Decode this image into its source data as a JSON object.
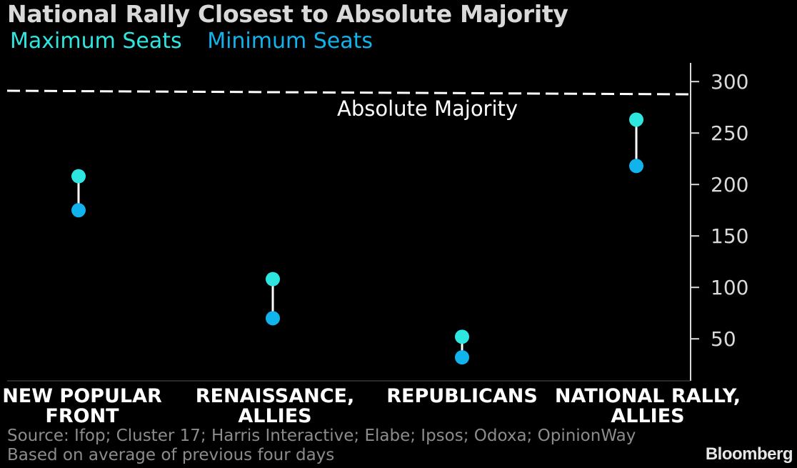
{
  "title": "National Rally Closest to Absolute Majority",
  "legend": [
    {
      "label": "Maximum Seats",
      "color": "#2ee6e0"
    },
    {
      "label": "Minimum Seats",
      "color": "#11b3ec"
    }
  ],
  "chart_data": {
    "type": "range-dot",
    "categories": [
      [
        "NEW POPULAR",
        "FRONT"
      ],
      [
        "RENAISSANCE,",
        "ALLIES"
      ],
      [
        "REPUBLICANS"
      ],
      [
        "NATIONAL RALLY,",
        "ALLIES"
      ]
    ],
    "series": [
      {
        "name": "Maximum Seats",
        "values": [
          208,
          108,
          52,
          263
        ]
      },
      {
        "name": "Minimum Seats",
        "values": [
          175,
          70,
          32,
          218
        ]
      }
    ],
    "reference_line": {
      "label": "Absolute Majority",
      "value": 289
    },
    "yticks": [
      50,
      100,
      150,
      200,
      250,
      300
    ],
    "ylim": [
      10,
      320
    ],
    "axis_side": "right",
    "colors": {
      "max": "#2ee6e0",
      "min": "#11b3ec",
      "connector": "#ffffff",
      "axis": "#d9d9d9"
    }
  },
  "source": "Source: Ifop; Cluster 17; Harris Interactive; Elabe; Ipsos; Odoxa; OpinionWay",
  "note": "Based on average of previous four days",
  "brand": "Bloomberg"
}
